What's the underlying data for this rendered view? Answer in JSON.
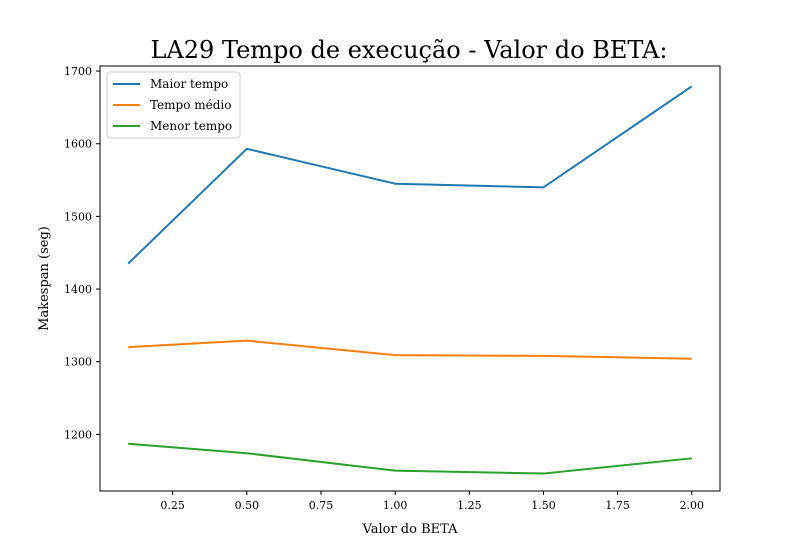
{
  "chart_data": {
    "type": "line",
    "title": "LA29 Tempo de execução - Valor do BETA:",
    "xlabel": "Valor do BETA",
    "ylabel": "Makespan (seg)",
    "x": [
      0.1,
      0.5,
      1.0,
      1.5,
      2.0
    ],
    "xlim": [
      0.005,
      2.095
    ],
    "ylim": [
      1122,
      1707
    ],
    "xticks": [
      0.25,
      0.5,
      0.75,
      1.0,
      1.25,
      1.5,
      1.75,
      2.0
    ],
    "xtick_labels": [
      "0.25",
      "0.50",
      "0.75",
      "1.00",
      "1.25",
      "1.50",
      "1.75",
      "2.00"
    ],
    "yticks": [
      1200,
      1300,
      1400,
      1500,
      1600,
      1700
    ],
    "ytick_labels": [
      "1200",
      "1300",
      "1400",
      "1500",
      "1600",
      "1700"
    ],
    "grid": false,
    "legend_position": "top-left",
    "series": [
      {
        "name": "Maior tempo",
        "color": "#1f77b4",
        "values": [
          1435,
          1593,
          1545,
          1540,
          1679
        ]
      },
      {
        "name": "Tempo médio",
        "color": "#ff7f0e",
        "values": [
          1320,
          1329,
          1309,
          1308,
          1304
        ]
      },
      {
        "name": "Menor tempo",
        "color": "#2ca02c",
        "values": [
          1187,
          1174,
          1150,
          1146,
          1167
        ]
      }
    ]
  }
}
